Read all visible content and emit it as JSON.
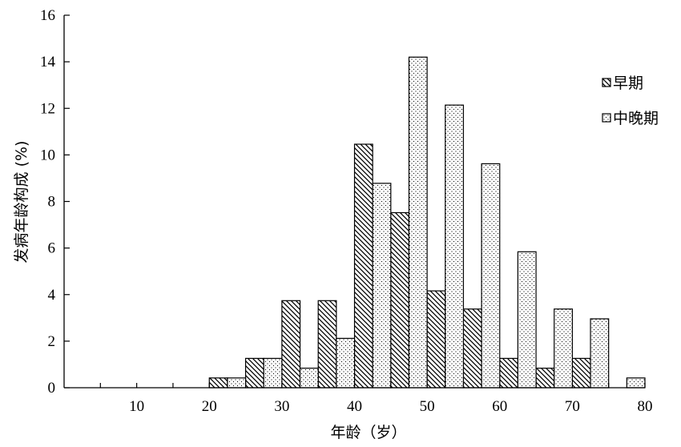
{
  "chart_data": {
    "type": "bar",
    "xlabel": "年龄（岁）",
    "ylabel": "发病年龄构成 (%)",
    "xlim": [
      0,
      80
    ],
    "ylim": [
      0,
      16
    ],
    "x_ticks": [
      10,
      20,
      30,
      40,
      50,
      60,
      70,
      80
    ],
    "y_ticks": [
      0,
      2,
      4,
      6,
      8,
      10,
      12,
      14,
      16
    ],
    "legend_position": "top-right",
    "grid": false,
    "categories": [
      "1-5",
      "6-10",
      "11-15",
      "16-20",
      "21-25",
      "26-30",
      "31-35",
      "36-40",
      "41-45",
      "46-50",
      "51-55",
      "56-60",
      "61-65",
      "66-70",
      "71-75",
      "76-80"
    ],
    "series": [
      {
        "name": "早期",
        "pattern": "hatch",
        "values": [
          0,
          0,
          0,
          0,
          0.42,
          1.26,
          3.74,
          3.74,
          10.46,
          7.52,
          4.16,
          3.38,
          1.26,
          0.84,
          1.26,
          0
        ]
      },
      {
        "name": "中晚期",
        "pattern": "dots",
        "values": [
          0,
          0,
          0,
          0,
          0.42,
          1.26,
          0.84,
          2.12,
          8.78,
          14.2,
          12.14,
          9.62,
          5.84,
          3.38,
          2.96,
          0.42
        ]
      }
    ]
  }
}
